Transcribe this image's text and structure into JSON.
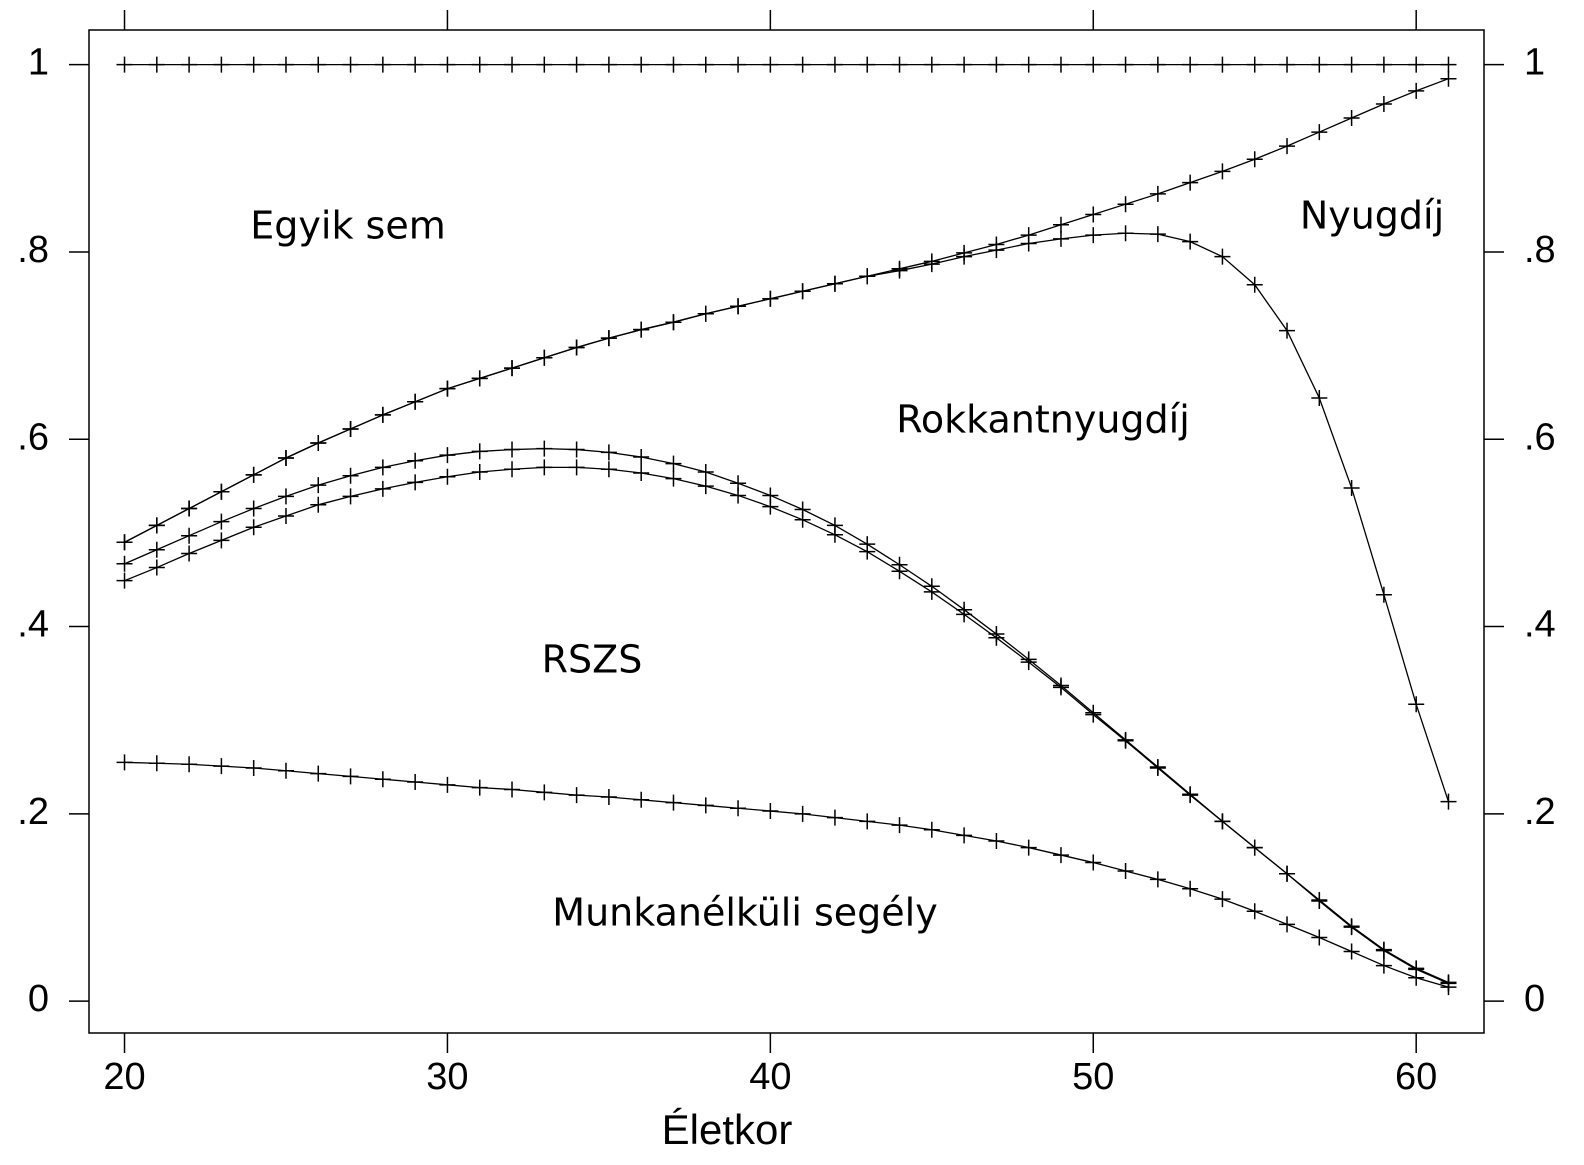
{
  "chart_data": {
    "type": "line",
    "x_label": "Életkor",
    "annotations": [
      "Egyik sem",
      "Nyugdíj",
      "Rokkantnyugdíj",
      "RSZS",
      "Munkanélküli segély"
    ],
    "x": [
      20,
      21,
      22,
      23,
      24,
      25,
      26,
      27,
      28,
      29,
      30,
      31,
      32,
      33,
      34,
      35,
      36,
      37,
      38,
      39,
      40,
      41,
      42,
      43,
      44,
      45,
      46,
      47,
      48,
      49,
      50,
      51,
      52,
      53,
      54,
      55,
      56,
      57,
      58,
      59,
      60,
      61
    ],
    "xlim": [
      18.9,
      62.1
    ],
    "xticks": [
      20,
      30,
      40,
      50,
      60
    ],
    "ylim": [
      -0.034,
      1.037
    ],
    "yticks": [
      0,
      {
        "value": 0.2,
        "label": ".2"
      },
      {
        "value": 0.4,
        "label": ".4"
      },
      {
        "value": 0.6,
        "label": ".6"
      },
      {
        "value": 0.8,
        "label": ".8"
      },
      1
    ],
    "marker": "+",
    "series": [
      {
        "color": "#000000",
        "values": [
          1,
          1,
          1,
          1,
          1,
          1,
          1,
          1,
          1,
          1,
          1,
          1,
          1,
          1,
          1,
          1,
          1,
          1,
          1,
          1,
          1,
          1,
          1,
          1,
          1,
          1,
          1,
          1,
          1,
          1,
          1,
          1,
          1,
          1,
          1,
          1,
          1,
          1,
          1,
          1,
          1,
          1
        ]
      },
      {
        "color": "#000000",
        "values": [
          0.49,
          0.508,
          0.526,
          0.544,
          0.562,
          0.58,
          0.596,
          0.611,
          0.626,
          0.64,
          0.654,
          0.665,
          0.676,
          0.687,
          0.698,
          0.708,
          0.717,
          0.725,
          0.734,
          0.742,
          0.75,
          0.758,
          0.766,
          0.774,
          0.782,
          0.79,
          0.799,
          0.808,
          0.818,
          0.829,
          0.84,
          0.851,
          0.862,
          0.874,
          0.886,
          0.899,
          0.913,
          0.928,
          0.943,
          0.958,
          0.972,
          0.985
        ]
      },
      {
        "color": "#000000",
        "values": [
          0.49,
          0.508,
          0.526,
          0.544,
          0.562,
          0.58,
          0.596,
          0.611,
          0.626,
          0.64,
          0.654,
          0.665,
          0.676,
          0.687,
          0.698,
          0.708,
          0.717,
          0.725,
          0.734,
          0.742,
          0.75,
          0.758,
          0.766,
          0.774,
          0.78,
          0.787,
          0.795,
          0.802,
          0.809,
          0.814,
          0.818,
          0.82,
          0.819,
          0.811,
          0.795,
          0.765,
          0.716,
          0.644,
          0.548,
          0.434,
          0.317,
          0.213
        ]
      },
      {
        "color": "#000000",
        "values": [
          0.467,
          0.482,
          0.497,
          0.512,
          0.526,
          0.539,
          0.551,
          0.561,
          0.57,
          0.577,
          0.583,
          0.587,
          0.589,
          0.59,
          0.589,
          0.586,
          0.581,
          0.574,
          0.565,
          0.553,
          0.54,
          0.525,
          0.508,
          0.488,
          0.466,
          0.443,
          0.418,
          0.392,
          0.365,
          0.337,
          0.308,
          0.279,
          0.25,
          0.221,
          0.192,
          0.164,
          0.136,
          0.108,
          0.08,
          0.055,
          0.035,
          0.02
        ]
      },
      {
        "color": "#000000",
        "values": [
          0.449,
          0.463,
          0.478,
          0.492,
          0.506,
          0.518,
          0.53,
          0.539,
          0.547,
          0.554,
          0.56,
          0.565,
          0.568,
          0.57,
          0.57,
          0.568,
          0.564,
          0.558,
          0.55,
          0.54,
          0.528,
          0.514,
          0.498,
          0.48,
          0.459,
          0.437,
          0.413,
          0.388,
          0.362,
          0.335,
          0.306,
          0.278,
          0.249,
          0.22,
          0.192,
          0.164,
          0.136,
          0.107,
          0.079,
          0.054,
          0.034,
          0.019
        ]
      },
      {
        "color": "#000000",
        "values": [
          0.255,
          0.254,
          0.253,
          0.251,
          0.249,
          0.246,
          0.243,
          0.24,
          0.237,
          0.234,
          0.231,
          0.228,
          0.226,
          0.223,
          0.22,
          0.218,
          0.215,
          0.212,
          0.209,
          0.206,
          0.203,
          0.2,
          0.196,
          0.192,
          0.188,
          0.183,
          0.177,
          0.171,
          0.164,
          0.156,
          0.148,
          0.139,
          0.13,
          0.12,
          0.109,
          0.096,
          0.082,
          0.068,
          0.053,
          0.038,
          0.025,
          0.015
        ]
      }
    ]
  }
}
